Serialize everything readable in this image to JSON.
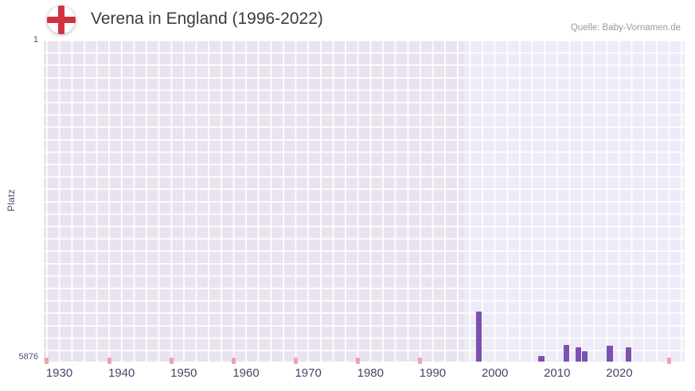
{
  "header": {
    "title": "Verena in England (1996-2022)",
    "source": "Quelle: Baby-Vornamen.de",
    "flag_icon": "england-flag-icon"
  },
  "chart_data": {
    "type": "bar",
    "title": "Verena in England (1996-2022)",
    "ylabel": "Platz",
    "xlabel": "",
    "grid": true,
    "y_axis": {
      "min": 1,
      "max": 5876,
      "inverted": true,
      "top_tick_label": "1",
      "bottom_tick_label": "5876"
    },
    "x_axis": {
      "min": 1927.5,
      "max": 2030.5,
      "tick_years": [
        1930,
        1940,
        1950,
        1960,
        1970,
        1980,
        1990,
        2000,
        2010,
        2020
      ],
      "tick_labels": [
        "1930",
        "1940",
        "1950",
        "1960",
        "1970",
        "1980",
        "1990",
        "2000",
        "2010",
        "2020"
      ]
    },
    "highlight_band": {
      "from_year": 1995,
      "to_year": 2030.5
    },
    "bars": [
      {
        "year": 1997,
        "rank": 4960
      },
      {
        "year": 2007,
        "rank": 5770
      },
      {
        "year": 2011,
        "rank": 5570
      },
      {
        "year": 2013,
        "rank": 5610
      },
      {
        "year": 2014,
        "rank": 5690
      },
      {
        "year": 2018,
        "rank": 5590
      },
      {
        "year": 2021,
        "rank": 5620
      }
    ],
    "no_rank_marks_years": [
      1928,
      1938,
      1948,
      1958,
      1968,
      1978,
      1988,
      2028
    ],
    "colors": {
      "bar": "#7c52b0",
      "no_rank": "#f0a2ae",
      "plot_bg": "#e9e3ef",
      "band_bg": "#edebf7",
      "grid_line": "#ffffff",
      "axis_text": "#55497c",
      "tick_text": "#4b4367",
      "title_text": "#3c3c3c",
      "source_text": "#999999",
      "flag_red": "#d0323e"
    }
  }
}
